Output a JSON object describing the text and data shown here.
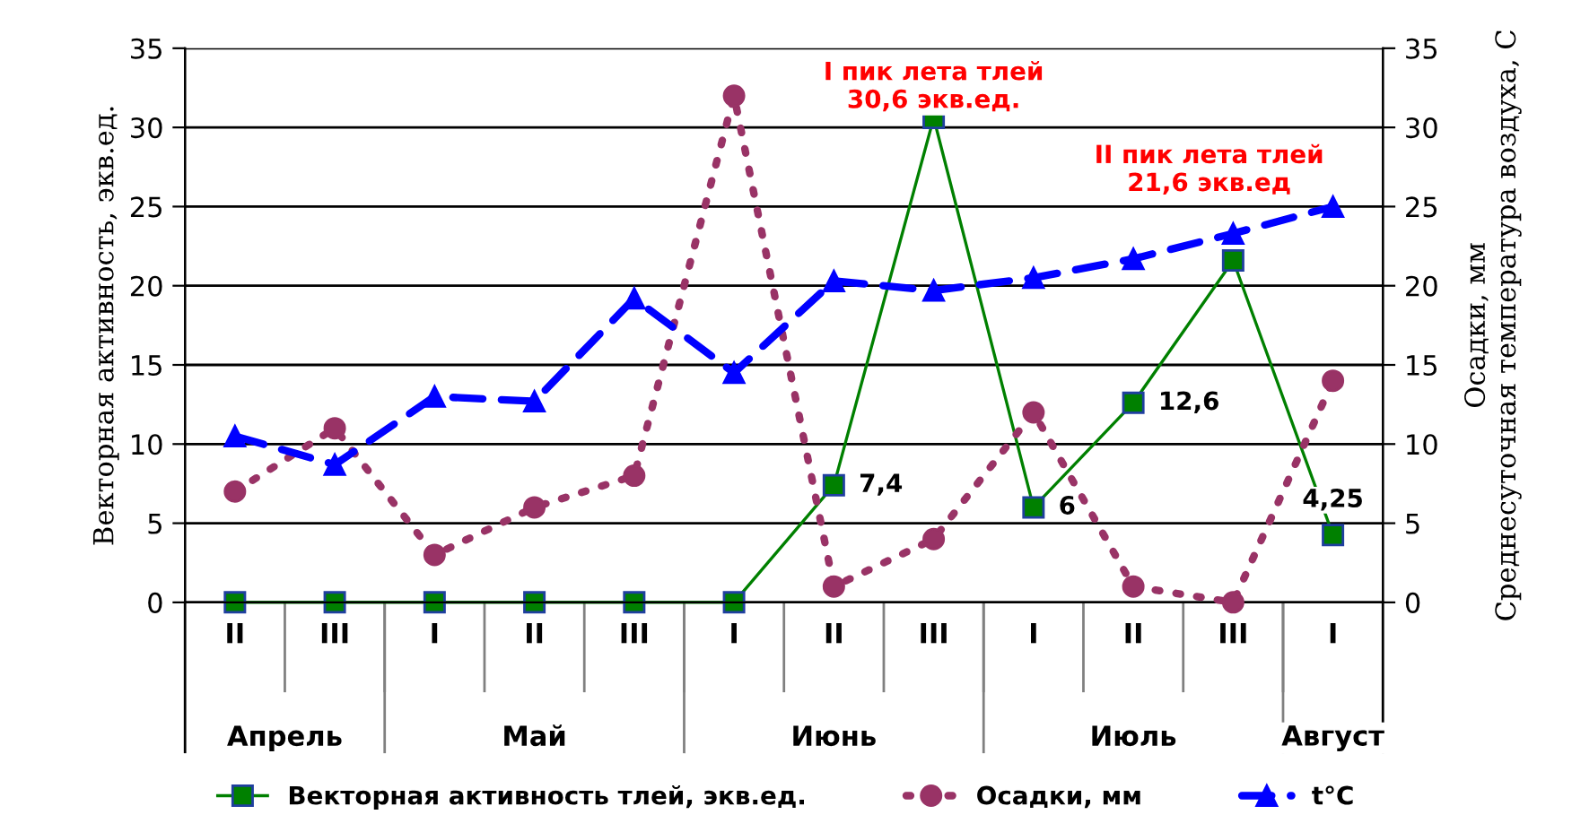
{
  "chart_data": {
    "type": "line",
    "categories": [
      "II",
      "III",
      "I",
      "II",
      "III",
      "I",
      "II",
      "III",
      "I",
      "II",
      "III",
      "I"
    ],
    "ylabel": "Векторная активность, экв.ед.",
    "y2label": "Осадки, мм\nСреднесуточная температура воздуха, С",
    "ylim": [
      0,
      35
    ],
    "yticks": [
      0,
      5,
      10,
      15,
      20,
      25,
      30,
      35
    ],
    "y2lim": [
      0,
      35
    ],
    "y2ticks": [
      0,
      5,
      10,
      15,
      20,
      25,
      30,
      35
    ],
    "grid": "y",
    "legend": "bottom",
    "series": [
      {
        "name": "Векторная активность тлей, экв.ед.",
        "color": "#008000",
        "marker": "square",
        "line_style": "solid",
        "values": [
          0,
          0,
          0,
          0,
          0,
          0,
          7.4,
          30.6,
          6,
          12.6,
          21.6,
          4.25
        ],
        "value_labels": [
          null,
          null,
          null,
          null,
          null,
          null,
          "7,4",
          null,
          "6",
          "12,6",
          null,
          "4,25"
        ]
      },
      {
        "name": "Осадки, мм",
        "color": "#993366",
        "marker": "circle",
        "line_style": "dotted",
        "axis": "y2",
        "values": [
          7,
          11,
          3,
          6,
          8,
          32,
          1,
          4,
          12,
          1,
          0,
          14
        ]
      },
      {
        "name": "t°C",
        "color": "#0000ff",
        "marker": "triangle",
        "line_style": "dashed",
        "axis": "y2",
        "values": [
          10.5,
          8.7,
          13,
          12.7,
          19.2,
          14.5,
          20.3,
          19.7,
          20.5,
          21.7,
          23.3,
          25
        ]
      }
    ],
    "annotations": [
      "Апрель",
      "Май",
      "Июнь",
      "Июль",
      "Август",
      "I пик лета тлей\n30,6 экв.ед.",
      "II пик лета тлей\n21,6 экв.ед"
    ]
  }
}
